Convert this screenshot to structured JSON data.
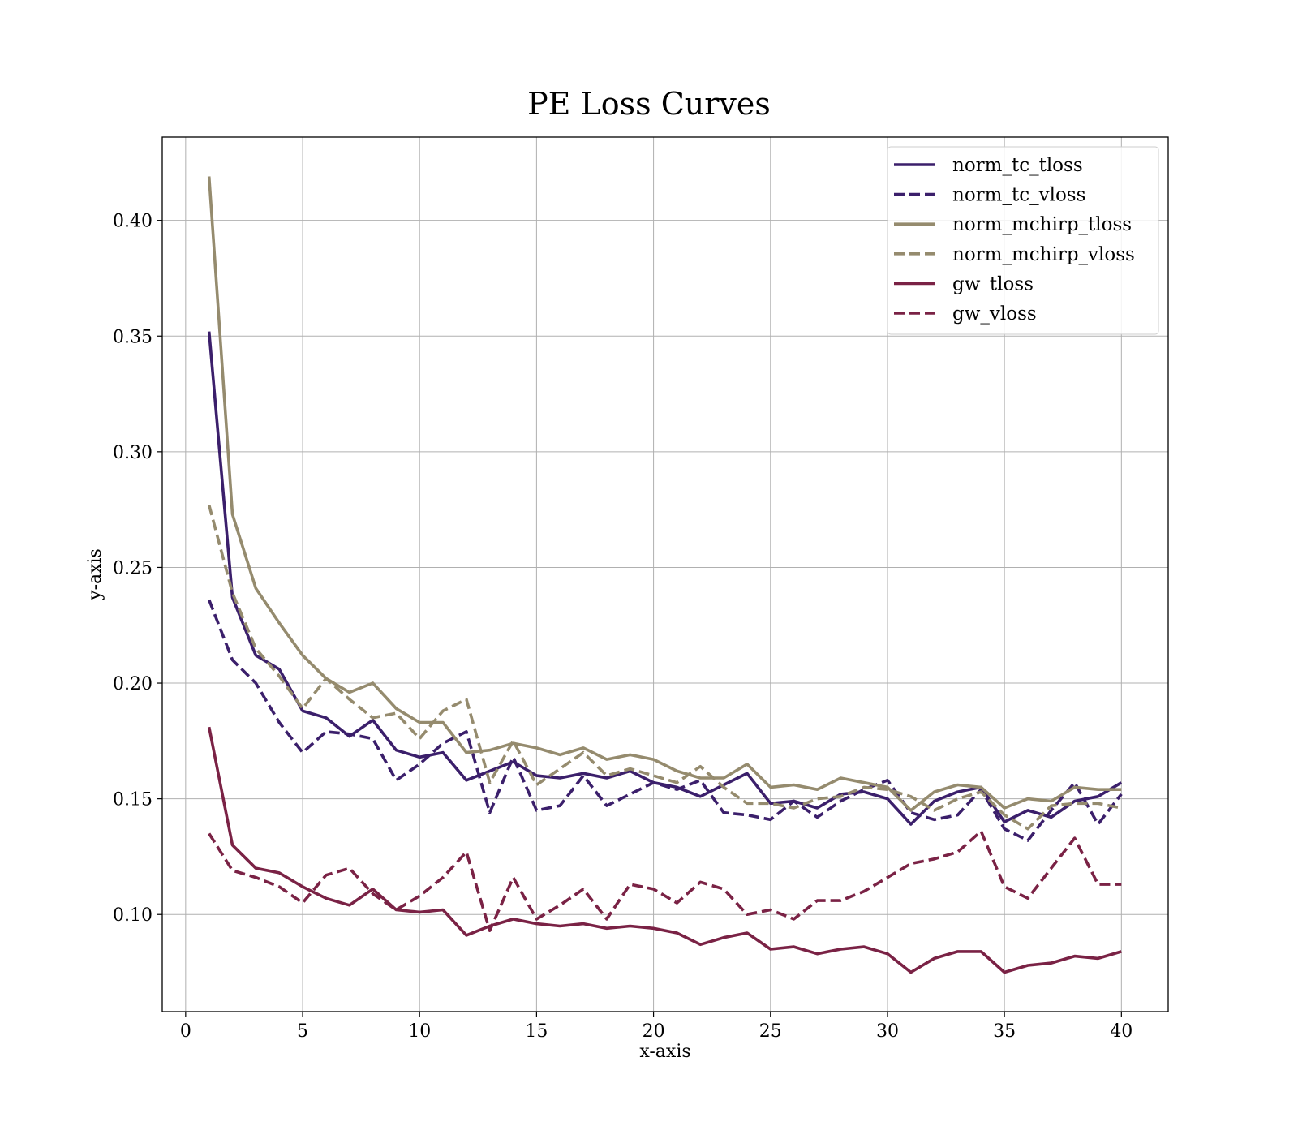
{
  "chart_data": {
    "type": "line",
    "title": "PE Loss Curves",
    "xlabel": "x-axis",
    "ylabel": "y-axis",
    "xlim": [
      -1,
      42
    ],
    "ylim": [
      0.058,
      0.436
    ],
    "xticks": [
      0,
      5,
      10,
      15,
      20,
      25,
      30,
      35,
      40
    ],
    "yticks": [
      0.1,
      0.15,
      0.2,
      0.25,
      0.3,
      0.35,
      0.4
    ],
    "ytick_labels": [
      "0.10",
      "0.15",
      "0.20",
      "0.25",
      "0.30",
      "0.35",
      "0.40"
    ],
    "grid": true,
    "legend_position": "top-right",
    "x": [
      1,
      2,
      3,
      4,
      5,
      6,
      7,
      8,
      9,
      10,
      11,
      12,
      13,
      14,
      15,
      16,
      17,
      18,
      19,
      20,
      21,
      22,
      23,
      24,
      25,
      26,
      27,
      28,
      29,
      30,
      31,
      32,
      33,
      34,
      35,
      36,
      37,
      38,
      39,
      40
    ],
    "series": [
      {
        "name": "norm_tc_tloss",
        "color": "#3b1f6b",
        "style": "solid",
        "values": [
          0.352,
          0.237,
          0.212,
          0.206,
          0.188,
          0.185,
          0.177,
          0.184,
          0.171,
          0.168,
          0.17,
          0.158,
          0.162,
          0.166,
          0.16,
          0.159,
          0.161,
          0.159,
          0.162,
          0.157,
          0.155,
          0.151,
          0.156,
          0.161,
          0.148,
          0.149,
          0.146,
          0.152,
          0.153,
          0.15,
          0.139,
          0.149,
          0.153,
          0.155,
          0.14,
          0.145,
          0.142,
          0.149,
          0.151,
          0.157
        ]
      },
      {
        "name": "norm_tc_vloss",
        "color": "#3b1f6b",
        "style": "dashed",
        "values": [
          0.236,
          0.21,
          0.2,
          0.183,
          0.17,
          0.179,
          0.178,
          0.176,
          0.158,
          0.165,
          0.174,
          0.179,
          0.144,
          0.168,
          0.145,
          0.147,
          0.16,
          0.147,
          0.152,
          0.157,
          0.154,
          0.158,
          0.144,
          0.143,
          0.141,
          0.149,
          0.142,
          0.149,
          0.154,
          0.158,
          0.144,
          0.141,
          0.143,
          0.154,
          0.137,
          0.132,
          0.145,
          0.157,
          0.139,
          0.152
        ]
      },
      {
        "name": "norm_mchirp_tloss",
        "color": "#958b6e",
        "style": "solid",
        "values": [
          0.419,
          0.273,
          0.241,
          0.226,
          0.212,
          0.202,
          0.196,
          0.2,
          0.189,
          0.183,
          0.183,
          0.17,
          0.171,
          0.174,
          0.172,
          0.169,
          0.172,
          0.167,
          0.169,
          0.167,
          0.162,
          0.159,
          0.159,
          0.165,
          0.155,
          0.156,
          0.154,
          0.159,
          0.157,
          0.155,
          0.145,
          0.153,
          0.156,
          0.155,
          0.146,
          0.15,
          0.149,
          0.155,
          0.154,
          0.154
        ]
      },
      {
        "name": "norm_mchirp_vloss",
        "color": "#958b6e",
        "style": "dashed",
        "values": [
          0.277,
          0.239,
          0.215,
          0.203,
          0.189,
          0.202,
          0.193,
          0.185,
          0.187,
          0.176,
          0.188,
          0.193,
          0.157,
          0.175,
          0.156,
          0.163,
          0.17,
          0.16,
          0.163,
          0.16,
          0.157,
          0.164,
          0.155,
          0.148,
          0.148,
          0.146,
          0.15,
          0.151,
          0.155,
          0.154,
          0.151,
          0.145,
          0.15,
          0.153,
          0.143,
          0.137,
          0.147,
          0.148,
          0.148,
          0.146
        ]
      },
      {
        "name": "gw_tloss",
        "color": "#7a2245",
        "style": "solid",
        "values": [
          0.181,
          0.13,
          0.12,
          0.118,
          0.112,
          0.107,
          0.104,
          0.111,
          0.102,
          0.101,
          0.102,
          0.091,
          0.095,
          0.098,
          0.096,
          0.095,
          0.096,
          0.094,
          0.095,
          0.094,
          0.092,
          0.087,
          0.09,
          0.092,
          0.085,
          0.086,
          0.083,
          0.085,
          0.086,
          0.083,
          0.075,
          0.081,
          0.084,
          0.084,
          0.075,
          0.078,
          0.079,
          0.082,
          0.081,
          0.084
        ]
      },
      {
        "name": "gw_vloss",
        "color": "#7a2245",
        "style": "dashed",
        "values": [
          0.135,
          0.119,
          0.116,
          0.112,
          0.105,
          0.117,
          0.12,
          0.109,
          0.102,
          0.108,
          0.116,
          0.127,
          0.093,
          0.116,
          0.098,
          0.104,
          0.111,
          0.098,
          0.113,
          0.111,
          0.105,
          0.114,
          0.111,
          0.1,
          0.102,
          0.098,
          0.106,
          0.106,
          0.11,
          0.116,
          0.122,
          0.124,
          0.127,
          0.136,
          0.112,
          0.107,
          0.12,
          0.133,
          0.113,
          0.113
        ]
      }
    ]
  }
}
